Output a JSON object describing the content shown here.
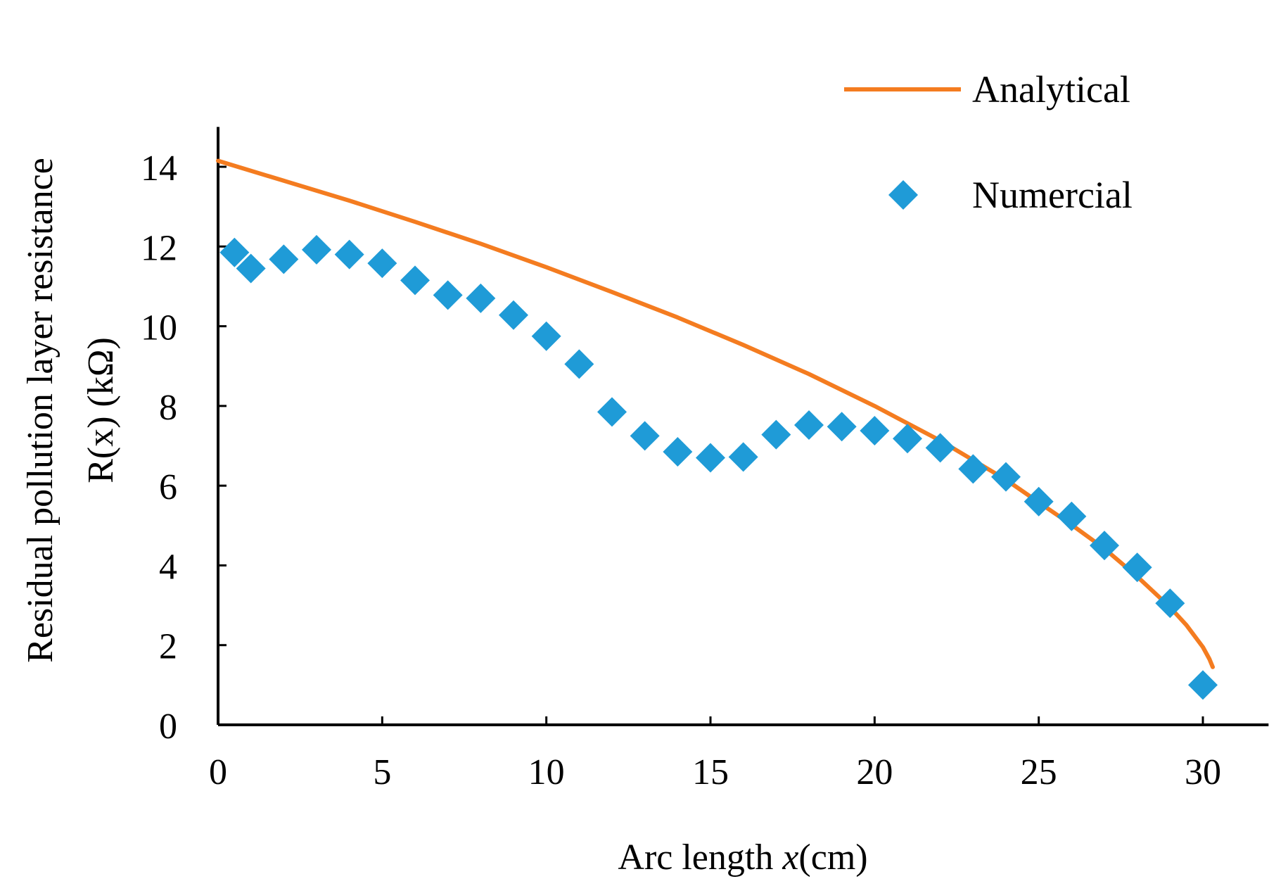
{
  "chart_data": {
    "type": "line",
    "title": "",
    "xlabel_main": "Arc length ",
    "xlabel_var": "x",
    "xlabel_unit": "(cm)",
    "ylabel_line1": "Residual pollution layer resistance",
    "ylabel_line2": "R(x) (kΩ)",
    "xlim": [
      0,
      32
    ],
    "ylim": [
      0,
      15
    ],
    "xticks": [
      0,
      5,
      10,
      15,
      20,
      25,
      30
    ],
    "yticks": [
      0,
      2,
      4,
      6,
      8,
      10,
      12,
      14
    ],
    "grid": false,
    "legend_position": "top-right",
    "colors": {
      "analytical": "#F47C20",
      "numerical": "#1F9BD7",
      "axis": "#000000"
    },
    "series": [
      {
        "name": "Analytical",
        "style": "line",
        "x": [
          0,
          2,
          4,
          6,
          8,
          10,
          12,
          14,
          16,
          18,
          20,
          22,
          24,
          25,
          26,
          27,
          28,
          29,
          29.5,
          30,
          30.2,
          30.3
        ],
        "y": [
          14.15,
          13.65,
          13.15,
          12.62,
          12.07,
          11.48,
          10.86,
          10.22,
          9.53,
          8.8,
          8.0,
          7.13,
          6.15,
          5.58,
          5.02,
          4.42,
          3.72,
          2.95,
          2.5,
          1.95,
          1.65,
          1.45
        ]
      },
      {
        "name": "Numercial",
        "style": "markers",
        "marker": "diamond",
        "x": [
          0.5,
          1,
          2,
          3,
          4,
          5,
          6,
          7,
          8,
          9,
          10,
          11,
          12,
          13,
          14,
          15,
          16,
          17,
          18,
          19,
          20,
          21,
          22,
          23,
          24,
          25,
          26,
          27,
          28,
          29,
          30
        ],
        "y": [
          11.85,
          11.45,
          11.68,
          11.92,
          11.8,
          11.58,
          11.15,
          10.78,
          10.7,
          10.28,
          9.75,
          9.05,
          7.85,
          7.25,
          6.85,
          6.7,
          6.72,
          7.28,
          7.52,
          7.48,
          7.38,
          7.18,
          6.95,
          6.42,
          6.22,
          5.6,
          5.23,
          4.5,
          3.95,
          3.05,
          1.0
        ]
      }
    ]
  }
}
